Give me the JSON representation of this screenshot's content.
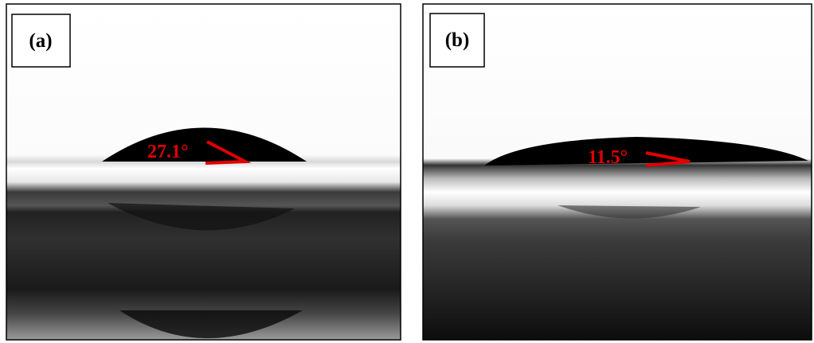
{
  "panels": [
    {
      "label": "(a)",
      "angle": "27.1°"
    },
    {
      "label": "(b)",
      "angle": "11.5°"
    }
  ]
}
